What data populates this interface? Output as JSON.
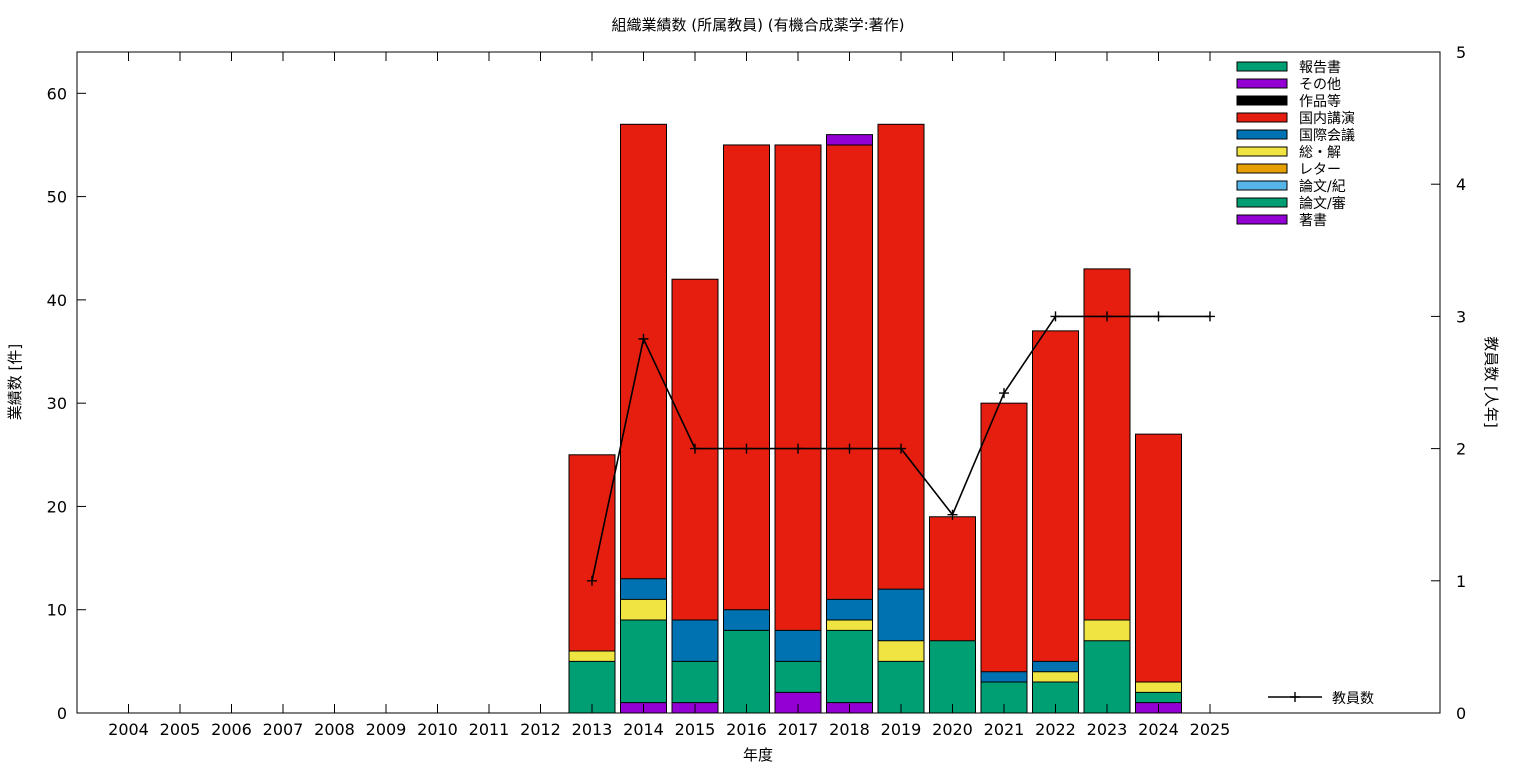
{
  "chart_data": {
    "type": "bar",
    "stacked": true,
    "title": "組織業績数 (所属教員) (有機合成薬学:著作)",
    "xlabel": "年度",
    "ylabel": "業績数 [件]",
    "y2label": "教員数 [人年]",
    "ylim": [
      0,
      64
    ],
    "y2lim": [
      0,
      5
    ],
    "yticks": [
      0,
      10,
      20,
      30,
      40,
      50,
      60
    ],
    "y2ticks": [
      0,
      1,
      2,
      3,
      4,
      5
    ],
    "grid": false,
    "legend_position": "top-right",
    "categories": [
      "2004",
      "2005",
      "2006",
      "2007",
      "2008",
      "2009",
      "2010",
      "2011",
      "2012",
      "2013",
      "2014",
      "2015",
      "2016",
      "2017",
      "2018",
      "2019",
      "2020",
      "2021",
      "2022",
      "2023",
      "2024",
      "2025"
    ],
    "stack_order": [
      "著書",
      "論文/審",
      "論文/紀",
      "レター",
      "総・解",
      "国際会議",
      "国内講演",
      "作品等",
      "その他",
      "報告書"
    ],
    "legend_order": [
      "報告書",
      "その他",
      "作品等",
      "国内講演",
      "国際会議",
      "総・解",
      "レター",
      "論文/紀",
      "論文/審",
      "著書"
    ],
    "colors": {
      "報告書": "#009e73",
      "その他": "#9400d3",
      "作品等": "#000000",
      "国内講演": "#e51e10",
      "国際会議": "#0072b2",
      "総・解": "#f0e442",
      "レター": "#e69f00",
      "論文/紀": "#56b4e9",
      "論文/審": "#009e73",
      "著書": "#9400d3"
    },
    "series": [
      {
        "name": "著書",
        "values": [
          0,
          0,
          0,
          0,
          0,
          0,
          0,
          0,
          0,
          0,
          1,
          1,
          0,
          2,
          1,
          0,
          0,
          0,
          0,
          0,
          1,
          0
        ]
      },
      {
        "name": "論文/審",
        "values": [
          0,
          0,
          0,
          0,
          0,
          0,
          0,
          0,
          0,
          5,
          8,
          4,
          8,
          3,
          7,
          5,
          7,
          3,
          3,
          7,
          1,
          0
        ]
      },
      {
        "name": "論文/紀",
        "values": [
          0,
          0,
          0,
          0,
          0,
          0,
          0,
          0,
          0,
          0,
          0,
          0,
          0,
          0,
          0,
          0,
          0,
          0,
          0,
          0,
          0,
          0
        ]
      },
      {
        "name": "レター",
        "values": [
          0,
          0,
          0,
          0,
          0,
          0,
          0,
          0,
          0,
          0,
          0,
          0,
          0,
          0,
          0,
          0,
          0,
          0,
          0,
          0,
          0,
          0
        ]
      },
      {
        "name": "総・解",
        "values": [
          0,
          0,
          0,
          0,
          0,
          0,
          0,
          0,
          0,
          1,
          2,
          0,
          0,
          0,
          1,
          2,
          0,
          0,
          1,
          2,
          1,
          0
        ]
      },
      {
        "name": "国際会議",
        "values": [
          0,
          0,
          0,
          0,
          0,
          0,
          0,
          0,
          0,
          0,
          2,
          4,
          2,
          3,
          2,
          5,
          0,
          1,
          1,
          0,
          0,
          0
        ]
      },
      {
        "name": "国内講演",
        "values": [
          0,
          0,
          0,
          0,
          0,
          0,
          0,
          0,
          0,
          19,
          44,
          33,
          45,
          47,
          44,
          45,
          12,
          26,
          32,
          34,
          24,
          0
        ]
      },
      {
        "name": "作品等",
        "values": [
          0,
          0,
          0,
          0,
          0,
          0,
          0,
          0,
          0,
          0,
          0,
          0,
          0,
          0,
          0,
          0,
          0,
          0,
          0,
          0,
          0,
          0
        ]
      },
      {
        "name": "その他",
        "values": [
          0,
          0,
          0,
          0,
          0,
          0,
          0,
          0,
          0,
          0,
          0,
          0,
          0,
          0,
          1,
          0,
          0,
          0,
          0,
          0,
          0,
          0
        ]
      },
      {
        "name": "報告書",
        "values": [
          0,
          0,
          0,
          0,
          0,
          0,
          0,
          0,
          0,
          0,
          0,
          0,
          0,
          0,
          0,
          0,
          0,
          0,
          0,
          0,
          0,
          0
        ]
      }
    ],
    "line": {
      "name": "教員数",
      "axis": "y2",
      "color": "#000000",
      "x": [
        "2013",
        "2014",
        "2015",
        "2016",
        "2017",
        "2018",
        "2019",
        "2020",
        "2021",
        "2022",
        "2023",
        "2024",
        "2025"
      ],
      "values": [
        1,
        2.83,
        2,
        2,
        2,
        2,
        2,
        1.5,
        2.42,
        3,
        3,
        3,
        3
      ]
    }
  }
}
